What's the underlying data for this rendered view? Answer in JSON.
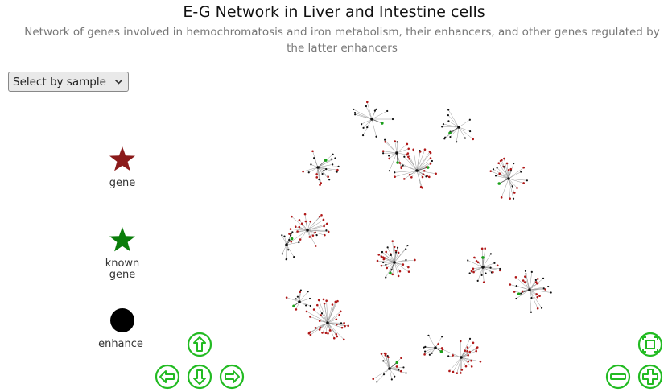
{
  "header": {
    "title": "E-G Network in Liver and Intestine cells",
    "subtitle": "Network of genes involved in hemochromatosis and iron metabolism, their enhancers, and other genes regulated by the latter enhancers"
  },
  "sample_select": {
    "selected": "Select by sample"
  },
  "legend": {
    "gene": {
      "label": "gene",
      "color": "#8b1a1a"
    },
    "known_gene": {
      "label_line1": "known",
      "label_line2": "gene",
      "color": "#0a7d0a"
    },
    "enhancer": {
      "label": "enhance",
      "color": "#000000"
    }
  },
  "navigation": {
    "color": "#22bb22",
    "buttons": [
      "up",
      "left",
      "down",
      "right",
      "zoom-extent",
      "zoom-out",
      "zoom-in"
    ]
  },
  "colors": {
    "edge": "#999999",
    "hub_edge": "#555555",
    "gene_node": "#b01818",
    "known_gene_node": "#1aa01a",
    "enhancer_node": "#111111"
  }
}
